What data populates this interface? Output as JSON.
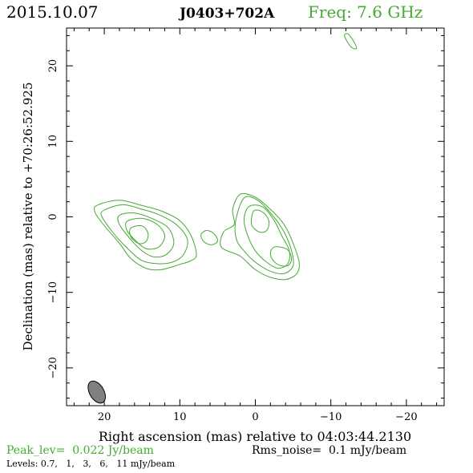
{
  "header": {
    "date": "2015.10.07",
    "source": "J0403+702A",
    "freq_label": "Freq: 7.6 GHz"
  },
  "footer": {
    "peak": "Peak_lev=  0.022 Jy/beam",
    "rms": "Rms_noise=  0.1 mJy/beam",
    "levels": "Levels: 0.7,   1,   3,   6,   11 mJy/beam"
  },
  "colors": {
    "contour": "#44aa33",
    "frame": "#000000",
    "beam": "#808080"
  },
  "chart_data": {
    "type": "contour",
    "title": "J0403+702A",
    "xlabel": "Right ascension (mas) relative to 04:03:44.2130",
    "ylabel": "Declination (mas) relative to +70:26:52.925",
    "xlim": [
      25,
      -25
    ],
    "ylim": [
      -25,
      25
    ],
    "x_ticks": [
      20,
      10,
      0,
      -10,
      -20
    ],
    "x_tick_labels": [
      "20",
      "10",
      "0",
      "−10",
      "−20"
    ],
    "y_ticks": [
      20,
      10,
      0,
      -10,
      -20
    ],
    "y_tick_labels": [
      "20",
      "10",
      "0",
      "−10",
      "−20"
    ],
    "contour_levels_mJy": [
      0.7,
      1,
      3,
      6,
      11
    ],
    "peak_Jy_per_beam": 0.022,
    "rms_noise_mJy_per_beam": 0.1,
    "beam": {
      "center": [
        21,
        -23.2
      ],
      "major": 3.2,
      "minor": 1.9,
      "pa_deg": -30
    },
    "components": [
      {
        "name": "",
        "contours": [
          [
            [
              20.8,
              1.6
            ],
            [
              18,
              2.2
            ],
            [
              15,
              1.5
            ],
            [
              12.5,
              0.8
            ],
            [
              10,
              -0.5
            ],
            [
              8.5,
              -2.5
            ],
            [
              7.8,
              -5
            ],
            [
              8.5,
              -5.8
            ],
            [
              10,
              -6.3
            ],
            [
              12.5,
              -7
            ],
            [
              14.5,
              -6.8
            ],
            [
              16.5,
              -5.5
            ],
            [
              18,
              -3.5
            ],
            [
              20.3,
              -0.8
            ],
            [
              21.3,
              0.8
            ]
          ],
          [
            [
              20,
              0.9
            ],
            [
              17.5,
              1.6
            ],
            [
              15,
              1
            ],
            [
              12.8,
              0.3
            ],
            [
              10.5,
              -1
            ],
            [
              9,
              -3
            ],
            [
              9.5,
              -5
            ],
            [
              11,
              -6
            ],
            [
              13,
              -6.2
            ],
            [
              15,
              -5.8
            ],
            [
              16.8,
              -4.3
            ],
            [
              18.5,
              -2.5
            ],
            [
              20.3,
              0
            ]
          ],
          [
            [
              18,
              0.2
            ],
            [
              16,
              0.5
            ],
            [
              13.5,
              -0.3
            ],
            [
              11.5,
              -1.5
            ],
            [
              10.8,
              -3.5
            ],
            [
              11.8,
              -5
            ],
            [
              13.5,
              -5.3
            ],
            [
              15,
              -4.5
            ],
            [
              16.5,
              -3
            ],
            [
              18,
              -1
            ]
          ],
          [
            [
              17,
              -0.6
            ],
            [
              15,
              -0.2
            ],
            [
              13,
              -1
            ],
            [
              12,
              -2.5
            ],
            [
              12.8,
              -4
            ],
            [
              14.5,
              -4.2
            ],
            [
              16,
              -3
            ],
            [
              17,
              -1.8
            ]
          ],
          [
            [
              16.5,
              -1.5
            ],
            [
              15,
              -1.2
            ],
            [
              14.2,
              -2.2
            ],
            [
              14.5,
              -3.3
            ],
            [
              15.5,
              -3.5
            ],
            [
              16.5,
              -2.6
            ]
          ]
        ]
      },
      {
        "name": "",
        "contours": [
          [
            [
              2,
              3
            ],
            [
              0,
              2.6
            ],
            [
              -2,
              1
            ],
            [
              -3.8,
              -1
            ],
            [
              -5,
              -3.5
            ],
            [
              -5.8,
              -6
            ],
            [
              -5.5,
              -7.5
            ],
            [
              -4,
              -8.3
            ],
            [
              -2,
              -8
            ],
            [
              0,
              -7
            ],
            [
              2,
              -5.2
            ],
            [
              4.5,
              -4
            ],
            [
              4.2,
              -2
            ],
            [
              2.8,
              -1
            ],
            [
              3,
              1
            ]
          ],
          [
            [
              1.5,
              2.5
            ],
            [
              -0.3,
              2.2
            ],
            [
              -2.2,
              0.3
            ],
            [
              -3.8,
              -2
            ],
            [
              -4.8,
              -4.5
            ],
            [
              -5,
              -6.5
            ],
            [
              -3.8,
              -7.5
            ],
            [
              -2,
              -7.2
            ],
            [
              0,
              -6
            ],
            [
              1.5,
              -4.5
            ],
            [
              2.5,
              -3
            ],
            [
              2.6,
              -0.5
            ]
          ],
          [
            [
              0.8,
              1.4
            ],
            [
              -1,
              1.3
            ],
            [
              -2.5,
              -0.5
            ],
            [
              -3.5,
              -2.5
            ],
            [
              -4.5,
              -4.5
            ],
            [
              -4.3,
              -6.2
            ],
            [
              -3,
              -6.8
            ],
            [
              -1.5,
              -6
            ],
            [
              0,
              -4.5
            ],
            [
              1,
              -2.5
            ],
            [
              1.5,
              -0.3
            ]
          ],
          [
            [
              0.2,
              0.8
            ],
            [
              -1,
              0.6
            ],
            [
              -1.8,
              -0.6
            ],
            [
              -1.5,
              -1.8
            ],
            [
              -0.5,
              -2
            ],
            [
              0.5,
              -1
            ]
          ],
          [
            [
              -2.5,
              -4
            ],
            [
              -4.2,
              -4.3
            ],
            [
              -4.8,
              -5.6
            ],
            [
              -4.2,
              -6.5
            ],
            [
              -2.8,
              -6.2
            ],
            [
              -2,
              -5
            ]
          ]
        ]
      },
      {
        "name": "",
        "contours": [
          [
            [
              6.5,
              -1.8
            ],
            [
              5.5,
              -2.2
            ],
            [
              5,
              -3.2
            ],
            [
              5.8,
              -3.7
            ],
            [
              6.8,
              -3.3
            ],
            [
              7.2,
              -2.4
            ]
          ]
        ]
      },
      {
        "name": "",
        "contours": [
          [
            [
              -12.3,
              24.2
            ],
            [
              -11.8,
              24.1
            ],
            [
              -12.1,
              23.3
            ],
            [
              -12.8,
              22.4
            ],
            [
              -13.4,
              22.3
            ],
            [
              -13.1,
              23.1
            ]
          ]
        ]
      }
    ]
  }
}
